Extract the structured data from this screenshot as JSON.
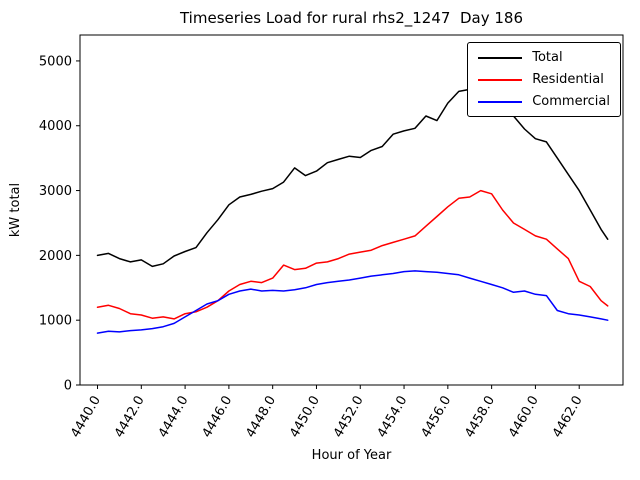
{
  "chart_data": {
    "type": "line",
    "title": "Timeseries Load for rural rhs2_1247  Day 186",
    "xlabel": "Hour of Year",
    "ylabel": "kW total",
    "xlim": [
      4439.2,
      4464.0
    ],
    "ylim": [
      0,
      5400
    ],
    "xticks": [
      4440,
      4442,
      4444,
      4446,
      4448,
      4450,
      4452,
      4454,
      4456,
      4458,
      4460,
      4462
    ],
    "xtick_labels": [
      "4440.0",
      "4442.0",
      "4444.0",
      "4446.0",
      "4448.0",
      "4450.0",
      "4452.0",
      "4454.0",
      "4456.0",
      "4458.0",
      "4460.0",
      "4462.0"
    ],
    "yticks": [
      0,
      1000,
      2000,
      3000,
      4000,
      5000
    ],
    "grid": false,
    "legend_position": "upper right",
    "x": [
      4440.0,
      4440.5,
      4441.0,
      4441.5,
      4442.0,
      4442.5,
      4443.0,
      4443.5,
      4444.0,
      4444.5,
      4445.0,
      4445.5,
      4446.0,
      4446.5,
      4447.0,
      4447.5,
      4448.0,
      4448.5,
      4449.0,
      4449.5,
      4450.0,
      4450.5,
      4451.0,
      4451.5,
      4452.0,
      4452.5,
      4453.0,
      4453.5,
      4454.0,
      4454.5,
      4455.0,
      4455.5,
      4456.0,
      4456.5,
      4457.0,
      4457.5,
      4458.0,
      4458.5,
      4459.0,
      4459.5,
      4460.0,
      4460.5,
      4461.0,
      4461.5,
      4462.0,
      4462.5,
      4463.0,
      4463.3
    ],
    "series": [
      {
        "name": "Total",
        "color": "#000000",
        "values": [
          2000,
          2030,
          1950,
          1900,
          1930,
          1830,
          1870,
          1990,
          2060,
          2120,
          2350,
          2550,
          2780,
          2900,
          2940,
          2990,
          3030,
          3130,
          3350,
          3230,
          3300,
          3430,
          3480,
          3530,
          3510,
          3620,
          3680,
          3870,
          3920,
          3960,
          4150,
          4080,
          4350,
          4530,
          4560,
          4510,
          4550,
          4450,
          4150,
          3950,
          3800,
          3750,
          3500,
          3250,
          3000,
          2700,
          2400,
          2250
        ]
      },
      {
        "name": "Residential",
        "color": "#ff0000",
        "values": [
          1200,
          1230,
          1180,
          1100,
          1080,
          1030,
          1050,
          1020,
          1100,
          1130,
          1200,
          1300,
          1450,
          1550,
          1600,
          1580,
          1650,
          1850,
          1780,
          1800,
          1880,
          1900,
          1950,
          2020,
          2050,
          2080,
          2150,
          2200,
          2250,
          2300,
          2450,
          2600,
          2750,
          2880,
          2900,
          3000,
          2950,
          2700,
          2500,
          2400,
          2300,
          2250,
          2100,
          1950,
          1600,
          1520,
          1300,
          1220
        ]
      },
      {
        "name": "Commercial",
        "color": "#0000ff",
        "values": [
          800,
          830,
          820,
          840,
          850,
          870,
          900,
          950,
          1050,
          1150,
          1250,
          1300,
          1400,
          1450,
          1480,
          1450,
          1460,
          1450,
          1470,
          1500,
          1550,
          1580,
          1600,
          1620,
          1650,
          1680,
          1700,
          1720,
          1750,
          1760,
          1750,
          1740,
          1720,
          1700,
          1650,
          1600,
          1550,
          1500,
          1430,
          1450,
          1400,
          1380,
          1150,
          1100,
          1080,
          1050,
          1020,
          1000
        ]
      }
    ]
  }
}
